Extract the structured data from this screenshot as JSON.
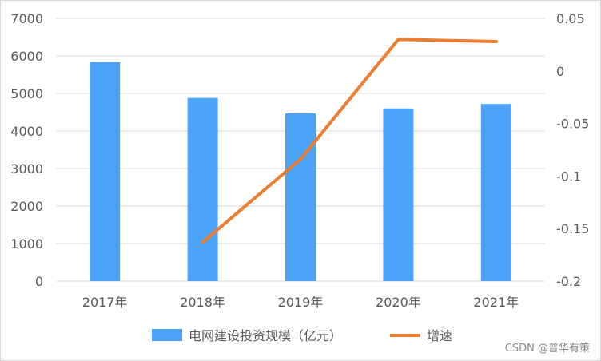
{
  "chart_data": {
    "type": "bar",
    "categories": [
      "2017年",
      "2018年",
      "2019年",
      "2020年",
      "2021年"
    ],
    "series": [
      {
        "name": "电网建设投资规模（亿元）",
        "type": "bar",
        "axis": "left",
        "color": "#4aa3f7",
        "values": [
          5830,
          4880,
          4470,
          4600,
          4720
        ]
      },
      {
        "name": "增速",
        "type": "line",
        "axis": "right",
        "color": "#ed7d31",
        "values": [
          null,
          -0.163,
          -0.084,
          0.03,
          0.028
        ]
      }
    ],
    "y_left": {
      "ylim": [
        0,
        7000
      ],
      "ticks": [
        "0",
        "1000",
        "2000",
        "3000",
        "4000",
        "5000",
        "6000",
        "7000"
      ]
    },
    "y_right": {
      "ylim": [
        -0.2,
        0.05
      ],
      "ticks": [
        "-0.2",
        "-0.15",
        "-0.1",
        "-0.05",
        "0",
        "0.05"
      ]
    },
    "grid": true,
    "legend": "bottom"
  },
  "watermark": "CSDN @普华有策"
}
